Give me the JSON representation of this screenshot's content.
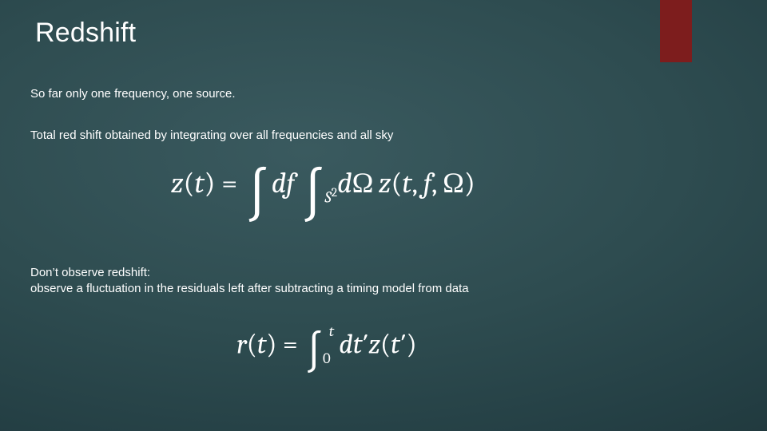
{
  "slide": {
    "background_gradient": [
      "#3a5a5f",
      "#2e4c50",
      "#243f44",
      "#18292c"
    ],
    "accent_color": "#7d1d1d",
    "text_color": "#ffffff",
    "title": "Redshift",
    "title_fontsize": 34,
    "body_fontsize": 15,
    "line1": "So far only one frequency, one source.",
    "line2": "Total red shift obtained by integrating over all frequencies and all sky",
    "line3a": "Don’t observe redshift:",
    "line3b": "observe a fluctuation in the residuals left after subtracting a timing model from data",
    "equations": {
      "eq1": {
        "latex": "z(t) = \\int df \\int_{S^2} d\\Omega\\, z(t, f, \\Omega)",
        "eq1_lhs_z": "z",
        "eq1_lhs_open": "(",
        "eq1_lhs_t": "t",
        "eq1_lhs_close": ")",
        "eq1_eq": " = ",
        "eq1_int1": "∫",
        "eq1_df_d": "d",
        "eq1_df_f": "f",
        "eq1_int2": "∫",
        "eq1_int2_sub_S": "S",
        "eq1_int2_sub_2": "2",
        "eq1_dO_d": "d",
        "eq1_dO_O": "Ω",
        "eq1_z2": "z",
        "eq1_open2": "(",
        "eq1_t2": "t",
        "eq1_c1": ", ",
        "eq1_f2": "f",
        "eq1_c2": ", ",
        "eq1_O2": "Ω",
        "eq1_close2": ")",
        "fontsize": 36
      },
      "eq2": {
        "latex": "r(t) = \\int_0^t dt'\\, z(t')",
        "eq2_r": "r",
        "eq2_open": "(",
        "eq2_t": "t",
        "eq2_close": ")",
        "eq2_eq": " = ",
        "eq2_int": "∫",
        "eq2_lb": "0",
        "eq2_ub": "t",
        "eq2_dt_d": "d",
        "eq2_dt_t": "t",
        "eq2_prime1": "′",
        "eq2_z": "z",
        "eq2_open2": "(",
        "eq2_t2": "t",
        "eq2_prime2": "′",
        "eq2_close2": ")",
        "fontsize": 34
      }
    }
  }
}
